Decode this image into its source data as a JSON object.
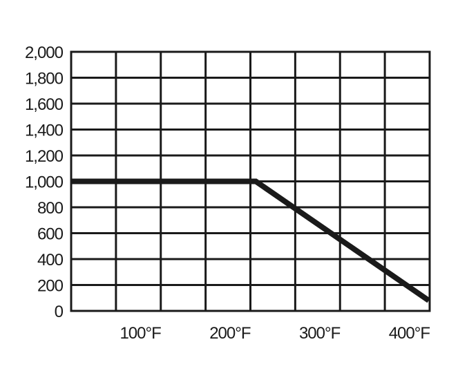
{
  "chart_data": {
    "type": "line",
    "title": "",
    "xlabel": "",
    "ylabel": "",
    "xlim": [
      29,
      429
    ],
    "ylim": [
      0,
      2000
    ],
    "grid": true,
    "x_ticks": [
      100,
      200,
      300,
      400
    ],
    "x_tick_labels": [
      "100°F",
      "200°F",
      "300°F",
      "400°F"
    ],
    "y_ticks": [
      0,
      200,
      400,
      600,
      800,
      1000,
      1200,
      1400,
      1600,
      1800,
      2000
    ],
    "y_tick_labels": [
      "0",
      "200",
      "400",
      "600",
      "800",
      "1,000",
      "1,200",
      "1,400",
      "1,600",
      "1,800",
      "2,000"
    ],
    "vertical_gridlines": 9,
    "series": [
      {
        "x": [
          29,
          235,
          428
        ],
        "y": [
          1000,
          1000,
          80
        ],
        "color": "#1a1a1a"
      }
    ]
  }
}
